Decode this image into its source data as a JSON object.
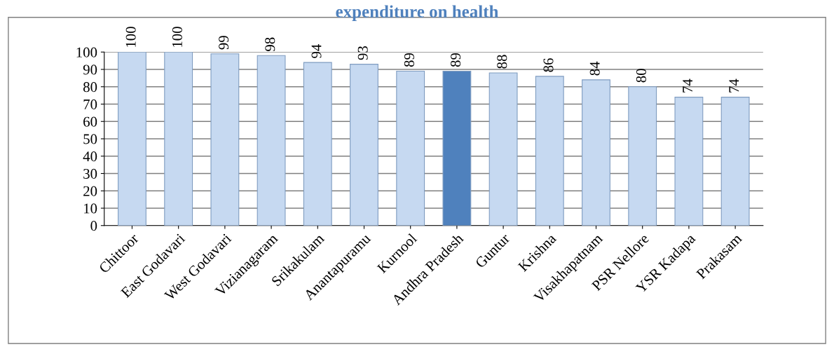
{
  "chart_data": {
    "type": "bar",
    "title": "expenditure on health",
    "categories": [
      "Chittoor",
      "East Godavari",
      "West Godavari",
      "Vizianagaram",
      "Srikakulam",
      "Anantapuramu",
      "Kurnool",
      "Andhra Pradesh",
      "Guntur",
      "Krishna",
      "Visakhapatnam",
      "PSR Nellore",
      "YSR Kadapa",
      "Prakasam"
    ],
    "values": [
      100,
      100,
      99,
      98,
      94,
      93,
      89,
      89,
      88,
      86,
      84,
      80,
      74,
      74
    ],
    "colors": [
      "#c6d9f1",
      "#c6d9f1",
      "#c6d9f1",
      "#c6d9f1",
      "#c6d9f1",
      "#c6d9f1",
      "#c6d9f1",
      "#4f81bd",
      "#c6d9f1",
      "#c6d9f1",
      "#c6d9f1",
      "#c6d9f1",
      "#c6d9f1",
      "#c6d9f1"
    ],
    "ylim": [
      0,
      100
    ],
    "yticks": [
      0,
      10,
      20,
      30,
      40,
      50,
      60,
      70,
      80,
      90,
      100
    ],
    "grid": "y",
    "data_labels": true
  }
}
